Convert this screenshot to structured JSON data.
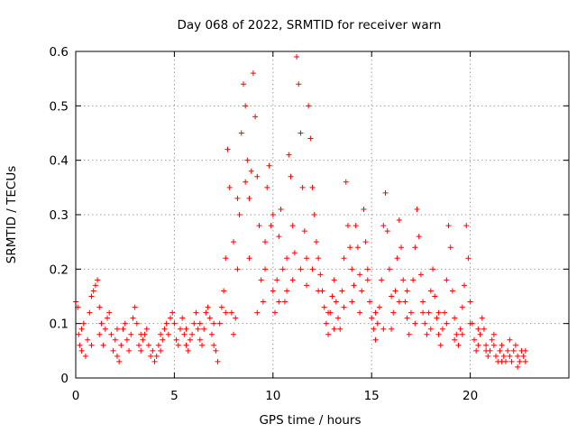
{
  "chart_data": {
    "type": "scatter",
    "title": "Day 068 of 2022, SRMTID for receiver warn",
    "xlabel": "GPS time / hours",
    "ylabel": "SRMTID / TECUs",
    "xlim": [
      0,
      25
    ],
    "ylim": [
      0,
      0.6
    ],
    "xticks": [
      0,
      5,
      10,
      15,
      20
    ],
    "xtick_labels": [
      "0",
      "5",
      "10",
      "15",
      "20"
    ],
    "yticks": [
      0,
      0.1,
      0.2,
      0.3,
      0.4,
      0.5,
      0.6
    ],
    "ytick_labels": [
      "0",
      "0.1",
      "0.2",
      "0.3",
      "0.4",
      "0.5",
      "0.6"
    ],
    "grid": true,
    "marker": "+",
    "color": "#ff0000",
    "series": [
      {
        "name": "SRMTID",
        "points": [
          [
            0.0,
            0.14
          ],
          [
            0.1,
            0.13
          ],
          [
            0.15,
            0.08
          ],
          [
            0.2,
            0.06
          ],
          [
            0.3,
            0.05
          ],
          [
            0.4,
            0.1
          ],
          [
            0.5,
            0.04
          ],
          [
            0.6,
            0.07
          ],
          [
            0.7,
            0.12
          ],
          [
            0.8,
            0.15
          ],
          [
            0.9,
            0.16
          ],
          [
            1.0,
            0.17
          ],
          [
            1.1,
            0.18
          ],
          [
            1.2,
            0.13
          ],
          [
            1.3,
            0.1
          ],
          [
            1.4,
            0.06
          ],
          [
            1.5,
            0.09
          ],
          [
            1.6,
            0.11
          ],
          [
            1.7,
            0.12
          ],
          [
            1.8,
            0.08
          ],
          [
            1.9,
            0.05
          ],
          [
            2.0,
            0.07
          ],
          [
            2.1,
            0.04
          ],
          [
            2.2,
            0.03
          ],
          [
            2.3,
            0.06
          ],
          [
            2.4,
            0.09
          ],
          [
            2.5,
            0.1
          ],
          [
            2.6,
            0.07
          ],
          [
            2.7,
            0.05
          ],
          [
            2.8,
            0.08
          ],
          [
            2.9,
            0.11
          ],
          [
            3.0,
            0.13
          ],
          [
            3.1,
            0.1
          ],
          [
            3.2,
            0.06
          ],
          [
            3.3,
            0.05
          ],
          [
            3.4,
            0.07
          ],
          [
            3.5,
            0.08
          ],
          [
            3.6,
            0.09
          ],
          [
            3.7,
            0.06
          ],
          [
            3.8,
            0.04
          ],
          [
            3.9,
            0.05
          ],
          [
            4.0,
            0.03
          ],
          [
            4.1,
            0.04
          ],
          [
            4.2,
            0.06
          ],
          [
            4.3,
            0.05
          ],
          [
            4.4,
            0.07
          ],
          [
            4.5,
            0.09
          ],
          [
            4.6,
            0.1
          ],
          [
            4.7,
            0.08
          ],
          [
            4.8,
            0.11
          ],
          [
            4.9,
            0.12
          ],
          [
            5.0,
            0.1
          ],
          [
            5.1,
            0.07
          ],
          [
            5.2,
            0.06
          ],
          [
            5.3,
            0.09
          ],
          [
            5.4,
            0.11
          ],
          [
            5.5,
            0.08
          ],
          [
            5.6,
            0.06
          ],
          [
            5.7,
            0.05
          ],
          [
            5.8,
            0.07
          ],
          [
            5.9,
            0.08
          ],
          [
            6.0,
            0.1
          ],
          [
            6.1,
            0.12
          ],
          [
            6.2,
            0.09
          ],
          [
            6.3,
            0.07
          ],
          [
            6.4,
            0.06
          ],
          [
            6.5,
            0.09
          ],
          [
            6.6,
            0.12
          ],
          [
            6.7,
            0.13
          ],
          [
            6.8,
            0.11
          ],
          [
            6.9,
            0.08
          ],
          [
            7.0,
            0.06
          ],
          [
            7.1,
            0.05
          ],
          [
            7.2,
            0.03
          ],
          [
            7.3,
            0.1
          ],
          [
            7.4,
            0.13
          ],
          [
            7.5,
            0.16
          ],
          [
            7.6,
            0.22
          ],
          [
            7.7,
            0.42
          ],
          [
            7.8,
            0.35
          ],
          [
            7.9,
            0.12
          ],
          [
            8.0,
            0.08
          ],
          [
            8.1,
            0.11
          ],
          [
            8.2,
            0.2
          ],
          [
            8.3,
            0.3
          ],
          [
            8.4,
            0.45
          ],
          [
            8.5,
            0.54
          ],
          [
            8.6,
            0.5
          ],
          [
            8.7,
            0.4
          ],
          [
            8.8,
            0.33
          ],
          [
            8.9,
            0.38
          ],
          [
            9.0,
            0.56
          ],
          [
            9.1,
            0.48
          ],
          [
            9.2,
            0.37
          ],
          [
            9.3,
            0.28
          ],
          [
            9.4,
            0.18
          ],
          [
            9.5,
            0.14
          ],
          [
            9.6,
            0.25
          ],
          [
            9.7,
            0.35
          ],
          [
            9.8,
            0.39
          ],
          [
            9.9,
            0.28
          ],
          [
            10.0,
            0.16
          ],
          [
            10.1,
            0.12
          ],
          [
            10.2,
            0.18
          ],
          [
            10.3,
            0.26
          ],
          [
            10.4,
            0.31
          ],
          [
            10.5,
            0.2
          ],
          [
            10.6,
            0.14
          ],
          [
            10.7,
            0.22
          ],
          [
            10.8,
            0.41
          ],
          [
            10.9,
            0.37
          ],
          [
            11.0,
            0.28
          ],
          [
            11.1,
            0.23
          ],
          [
            11.2,
            0.59
          ],
          [
            11.3,
            0.54
          ],
          [
            11.4,
            0.45
          ],
          [
            11.5,
            0.35
          ],
          [
            11.6,
            0.27
          ],
          [
            11.7,
            0.22
          ],
          [
            11.8,
            0.5
          ],
          [
            11.9,
            0.44
          ],
          [
            12.0,
            0.35
          ],
          [
            12.1,
            0.3
          ],
          [
            12.2,
            0.25
          ],
          [
            12.3,
            0.22
          ],
          [
            12.4,
            0.19
          ],
          [
            12.5,
            0.16
          ],
          [
            12.6,
            0.13
          ],
          [
            12.7,
            0.1
          ],
          [
            12.8,
            0.08
          ],
          [
            12.9,
            0.12
          ],
          [
            13.0,
            0.15
          ],
          [
            13.1,
            0.18
          ],
          [
            13.2,
            0.14
          ],
          [
            13.3,
            0.11
          ],
          [
            13.4,
            0.09
          ],
          [
            13.5,
            0.16
          ],
          [
            13.6,
            0.22
          ],
          [
            13.7,
            0.36
          ],
          [
            13.8,
            0.28
          ],
          [
            13.9,
            0.24
          ],
          [
            14.0,
            0.2
          ],
          [
            14.1,
            0.17
          ],
          [
            14.2,
            0.28
          ],
          [
            14.3,
            0.24
          ],
          [
            14.4,
            0.19
          ],
          [
            14.5,
            0.16
          ],
          [
            14.6,
            0.31
          ],
          [
            14.7,
            0.25
          ],
          [
            14.8,
            0.18
          ],
          [
            14.9,
            0.14
          ],
          [
            15.0,
            0.11
          ],
          [
            15.1,
            0.09
          ],
          [
            15.2,
            0.07
          ],
          [
            15.3,
            0.1
          ],
          [
            15.4,
            0.13
          ],
          [
            15.5,
            0.18
          ],
          [
            15.6,
            0.28
          ],
          [
            15.7,
            0.34
          ],
          [
            15.8,
            0.27
          ],
          [
            15.9,
            0.2
          ],
          [
            16.0,
            0.15
          ],
          [
            16.1,
            0.12
          ],
          [
            16.2,
            0.16
          ],
          [
            16.3,
            0.22
          ],
          [
            16.4,
            0.29
          ],
          [
            16.5,
            0.24
          ],
          [
            16.6,
            0.18
          ],
          [
            16.7,
            0.14
          ],
          [
            16.8,
            0.11
          ],
          [
            16.9,
            0.08
          ],
          [
            17.0,
            0.12
          ],
          [
            17.1,
            0.18
          ],
          [
            17.2,
            0.24
          ],
          [
            17.3,
            0.31
          ],
          [
            17.4,
            0.26
          ],
          [
            17.5,
            0.19
          ],
          [
            17.6,
            0.14
          ],
          [
            17.7,
            0.1
          ],
          [
            17.8,
            0.08
          ],
          [
            17.9,
            0.12
          ],
          [
            18.0,
            0.16
          ],
          [
            18.1,
            0.2
          ],
          [
            18.2,
            0.15
          ],
          [
            18.3,
            0.11
          ],
          [
            18.4,
            0.08
          ],
          [
            18.5,
            0.06
          ],
          [
            18.6,
            0.09
          ],
          [
            18.7,
            0.12
          ],
          [
            18.8,
            0.18
          ],
          [
            18.9,
            0.28
          ],
          [
            19.0,
            0.24
          ],
          [
            19.1,
            0.16
          ],
          [
            19.2,
            0.11
          ],
          [
            19.3,
            0.08
          ],
          [
            19.4,
            0.06
          ],
          [
            19.5,
            0.09
          ],
          [
            19.6,
            0.13
          ],
          [
            19.7,
            0.17
          ],
          [
            19.8,
            0.28
          ],
          [
            19.9,
            0.22
          ],
          [
            20.0,
            0.14
          ],
          [
            20.1,
            0.1
          ],
          [
            20.2,
            0.07
          ],
          [
            20.3,
            0.05
          ],
          [
            20.4,
            0.06
          ],
          [
            20.5,
            0.08
          ],
          [
            20.6,
            0.11
          ],
          [
            20.7,
            0.09
          ],
          [
            20.8,
            0.06
          ],
          [
            20.9,
            0.04
          ],
          [
            21.0,
            0.05
          ],
          [
            21.1,
            0.07
          ],
          [
            21.2,
            0.06
          ],
          [
            21.3,
            0.04
          ],
          [
            21.4,
            0.03
          ],
          [
            21.5,
            0.05
          ],
          [
            21.6,
            0.06
          ],
          [
            21.7,
            0.04
          ],
          [
            21.8,
            0.03
          ],
          [
            21.9,
            0.05
          ],
          [
            22.0,
            0.04
          ],
          [
            22.1,
            0.03
          ],
          [
            22.2,
            0.05
          ],
          [
            22.3,
            0.06
          ],
          [
            22.4,
            0.04
          ],
          [
            22.5,
            0.03
          ],
          [
            22.6,
            0.05
          ],
          [
            22.7,
            0.04
          ],
          [
            22.8,
            0.03
          ],
          [
            0.3,
            0.09
          ],
          [
            0.8,
            0.06
          ],
          [
            1.2,
            0.08
          ],
          [
            2.1,
            0.09
          ],
          [
            3.3,
            0.08
          ],
          [
            4.3,
            0.08
          ],
          [
            5.6,
            0.09
          ],
          [
            6.3,
            0.1
          ],
          [
            7.0,
            0.1
          ],
          [
            7.6,
            0.12
          ],
          [
            8.0,
            0.25
          ],
          [
            8.2,
            0.33
          ],
          [
            8.6,
            0.36
          ],
          [
            8.8,
            0.22
          ],
          [
            9.2,
            0.12
          ],
          [
            9.6,
            0.2
          ],
          [
            10.0,
            0.3
          ],
          [
            10.3,
            0.14
          ],
          [
            10.7,
            0.16
          ],
          [
            11.0,
            0.18
          ],
          [
            11.4,
            0.2
          ],
          [
            11.7,
            0.17
          ],
          [
            12.0,
            0.2
          ],
          [
            12.3,
            0.16
          ],
          [
            12.8,
            0.12
          ],
          [
            13.1,
            0.09
          ],
          [
            13.6,
            0.13
          ],
          [
            14.0,
            0.14
          ],
          [
            14.4,
            0.12
          ],
          [
            14.8,
            0.2
          ],
          [
            15.2,
            0.12
          ],
          [
            15.6,
            0.09
          ],
          [
            16.0,
            0.09
          ],
          [
            16.4,
            0.14
          ],
          [
            16.8,
            0.16
          ],
          [
            17.2,
            0.1
          ],
          [
            17.6,
            0.12
          ],
          [
            18.0,
            0.09
          ],
          [
            18.4,
            0.12
          ],
          [
            18.8,
            0.1
          ],
          [
            19.2,
            0.07
          ],
          [
            19.6,
            0.08
          ],
          [
            20.0,
            0.1
          ],
          [
            20.4,
            0.09
          ],
          [
            20.8,
            0.05
          ],
          [
            21.2,
            0.08
          ],
          [
            21.6,
            0.03
          ],
          [
            22.0,
            0.07
          ],
          [
            22.4,
            0.02
          ],
          [
            22.8,
            0.05
          ]
        ]
      }
    ]
  }
}
